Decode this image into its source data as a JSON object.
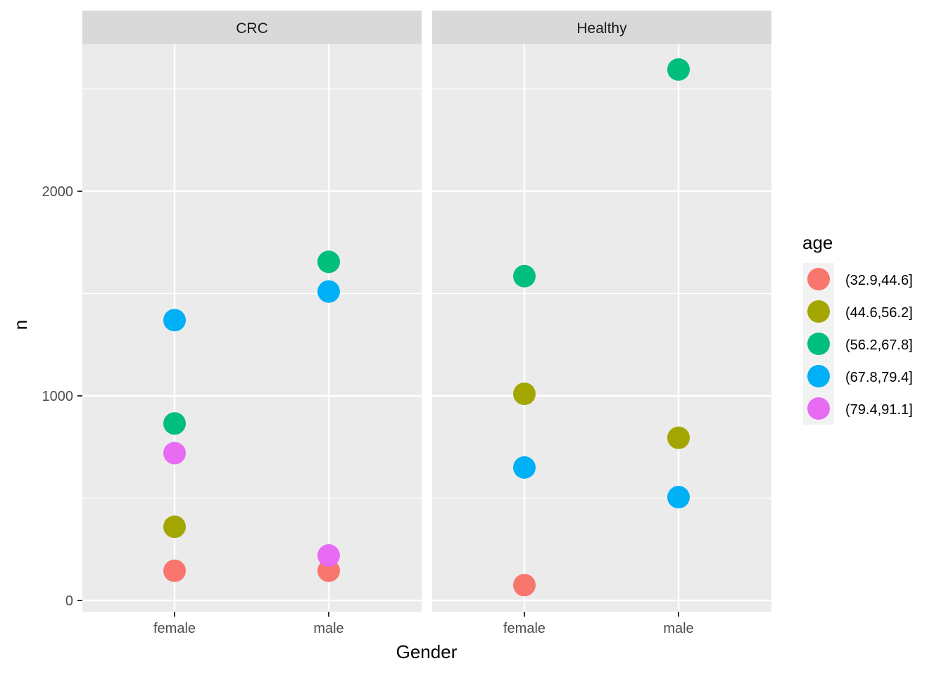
{
  "chart_data": {
    "type": "scatter",
    "xlabel": "Gender",
    "ylabel": "n",
    "ylim": [
      -50,
      2700
    ],
    "y_ticks": [
      "0",
      "1000",
      "2000"
    ],
    "y_tick_values": [
      0,
      1000,
      2000
    ],
    "categories": [
      "female",
      "male"
    ],
    "facets": [
      {
        "label": "CRC",
        "points": [
          {
            "x": "female",
            "y": 145,
            "group": "(32.9,44.6]"
          },
          {
            "x": "female",
            "y": 360,
            "group": "(44.6,56.2]"
          },
          {
            "x": "female",
            "y": 865,
            "group": "(56.2,67.8]"
          },
          {
            "x": "female",
            "y": 1370,
            "group": "(67.8,79.4]"
          },
          {
            "x": "female",
            "y": 720,
            "group": "(79.4,91.1]"
          },
          {
            "x": "male",
            "y": 145,
            "group": "(32.9,44.6]"
          },
          {
            "x": "male",
            "y": 1655,
            "group": "(56.2,67.8]"
          },
          {
            "x": "male",
            "y": 1510,
            "group": "(67.8,79.4]"
          },
          {
            "x": "male",
            "y": 220,
            "group": "(79.4,91.1]"
          }
        ]
      },
      {
        "label": "Healthy",
        "points": [
          {
            "x": "female",
            "y": 75,
            "group": "(32.9,44.6]"
          },
          {
            "x": "female",
            "y": 1010,
            "group": "(44.6,56.2]"
          },
          {
            "x": "female",
            "y": 1585,
            "group": "(56.2,67.8]"
          },
          {
            "x": "female",
            "y": 650,
            "group": "(67.8,79.4]"
          },
          {
            "x": "male",
            "y": 795,
            "group": "(44.6,56.2]"
          },
          {
            "x": "male",
            "y": 2595,
            "group": "(56.2,67.8]"
          },
          {
            "x": "male",
            "y": 505,
            "group": "(67.8,79.4]"
          }
        ]
      }
    ],
    "legend": {
      "title": "age",
      "position": "right",
      "entries": [
        {
          "label": "(32.9,44.6]",
          "color": "#F8766D"
        },
        {
          "label": "(44.6,56.2]",
          "color": "#A3A500"
        },
        {
          "label": "(56.2,67.8]",
          "color": "#00BF7D"
        },
        {
          "label": "(67.8,79.4]",
          "color": "#00B0F6"
        },
        {
          "label": "(79.4,91.1]",
          "color": "#E76BF3"
        }
      ]
    },
    "colors": {
      "panel_background": "#EBEBEB",
      "strip_background": "#D9D9D9",
      "grid": "#FFFFFF"
    }
  }
}
